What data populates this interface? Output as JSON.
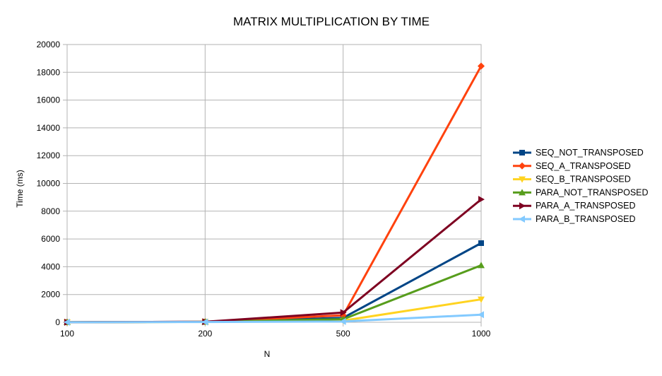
{
  "chart_data": {
    "type": "line",
    "title": "MATRIX MULTIPLICATION BY TIME",
    "xlabel": "N",
    "ylabel": "Time (ms)",
    "categories": [
      "100",
      "200",
      "500",
      "1000"
    ],
    "ylim": [
      0,
      20000
    ],
    "yticks": [
      0,
      2000,
      4000,
      6000,
      8000,
      10000,
      12000,
      14000,
      16000,
      18000,
      20000
    ],
    "grid": true,
    "legend_position": "right",
    "series": [
      {
        "name": "SEQ_NOT_TRANSPOSED",
        "color": "#004586",
        "marker": "square",
        "values": [
          5,
          40,
          320,
          5700
        ]
      },
      {
        "name": "SEQ_A_TRANSPOSED",
        "color": "#ff420e",
        "marker": "diamond",
        "values": [
          5,
          40,
          500,
          18450
        ]
      },
      {
        "name": "SEQ_B_TRANSPOSED",
        "color": "#ffd320",
        "marker": "triangle-down",
        "values": [
          5,
          30,
          120,
          1650
        ]
      },
      {
        "name": "PARA_NOT_TRANSPOSED",
        "color": "#579d1c",
        "marker": "triangle-up",
        "values": [
          5,
          30,
          220,
          4100
        ]
      },
      {
        "name": "PARA_A_TRANSPOSED",
        "color": "#7e0021",
        "marker": "triangle-right",
        "values": [
          5,
          40,
          700,
          8850
        ]
      },
      {
        "name": "PARA_B_TRANSPOSED",
        "color": "#83caff",
        "marker": "triangle-left",
        "values": [
          5,
          20,
          60,
          550
        ]
      }
    ]
  }
}
